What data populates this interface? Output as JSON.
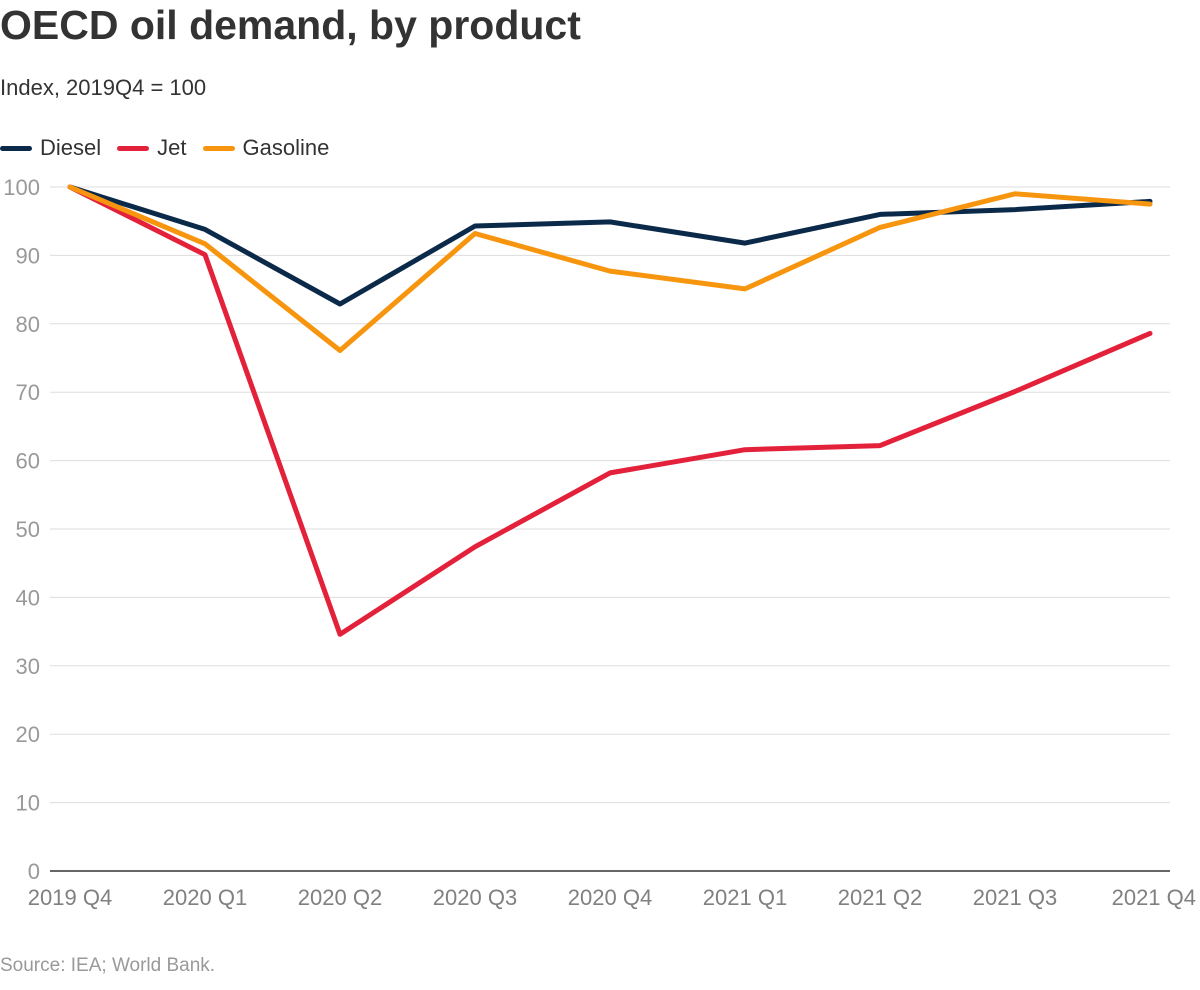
{
  "chart_data": {
    "type": "line",
    "title": "OECD oil demand, by product",
    "subtitle": "Index, 2019Q4 = 100",
    "source": "Source: IEA; World Bank.",
    "categories": [
      "2019 Q4",
      "2020 Q1",
      "2020 Q2",
      "2020 Q3",
      "2020 Q4",
      "2021 Q1",
      "2021 Q2",
      "2021 Q3",
      "2021 Q4"
    ],
    "series": [
      {
        "name": "Diesel",
        "color": "#0b2a4a",
        "values": [
          100,
          93.8,
          82.9,
          94.3,
          94.9,
          91.8,
          96.0,
          96.7,
          97.9
        ]
      },
      {
        "name": "Jet",
        "color": "#e3213a",
        "values": [
          100,
          90.1,
          34.6,
          47.4,
          58.2,
          61.6,
          62.2,
          70.1,
          78.6
        ]
      },
      {
        "name": "Gasoline",
        "color": "#f7960e",
        "values": [
          100,
          91.7,
          76.1,
          93.2,
          87.7,
          85.1,
          94.1,
          99.0,
          97.5
        ]
      }
    ],
    "y_ticks": [
      "0",
      "10",
      "20",
      "30",
      "40",
      "50",
      "60",
      "70",
      "80",
      "90",
      "100"
    ],
    "ylim": [
      0,
      100
    ],
    "grid": true,
    "legend_position": "top-left"
  }
}
